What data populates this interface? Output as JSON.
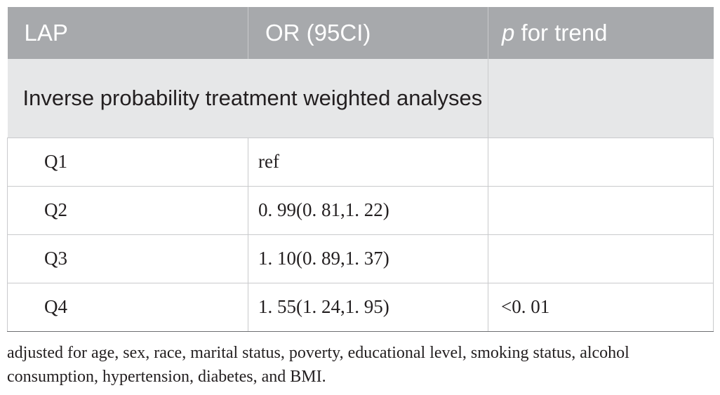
{
  "table": {
    "headers": {
      "col1": "LAP",
      "col2": "OR (95CI)",
      "col3_italic": "p",
      "col3_rest": " for trend"
    },
    "section_label": "Inverse probability treatment weighted analyses",
    "rows": [
      {
        "quartile": "Q1",
        "or_ci": "ref",
        "p_trend": ""
      },
      {
        "quartile": "Q2",
        "or_ci": "0. 99(0. 81,1. 22)",
        "p_trend": ""
      },
      {
        "quartile": "Q3",
        "or_ci": "1. 10(0. 89,1. 37)",
        "p_trend": ""
      },
      {
        "quartile": "Q4",
        "or_ci": "1. 55(1. 24,1. 95)",
        "p_trend": "<0. 01"
      }
    ]
  },
  "footnote": "adjusted for age, sex, race, marital status, poverty, educational level, smoking status, alcohol consumption, hypertension, diabetes, and BMI."
}
